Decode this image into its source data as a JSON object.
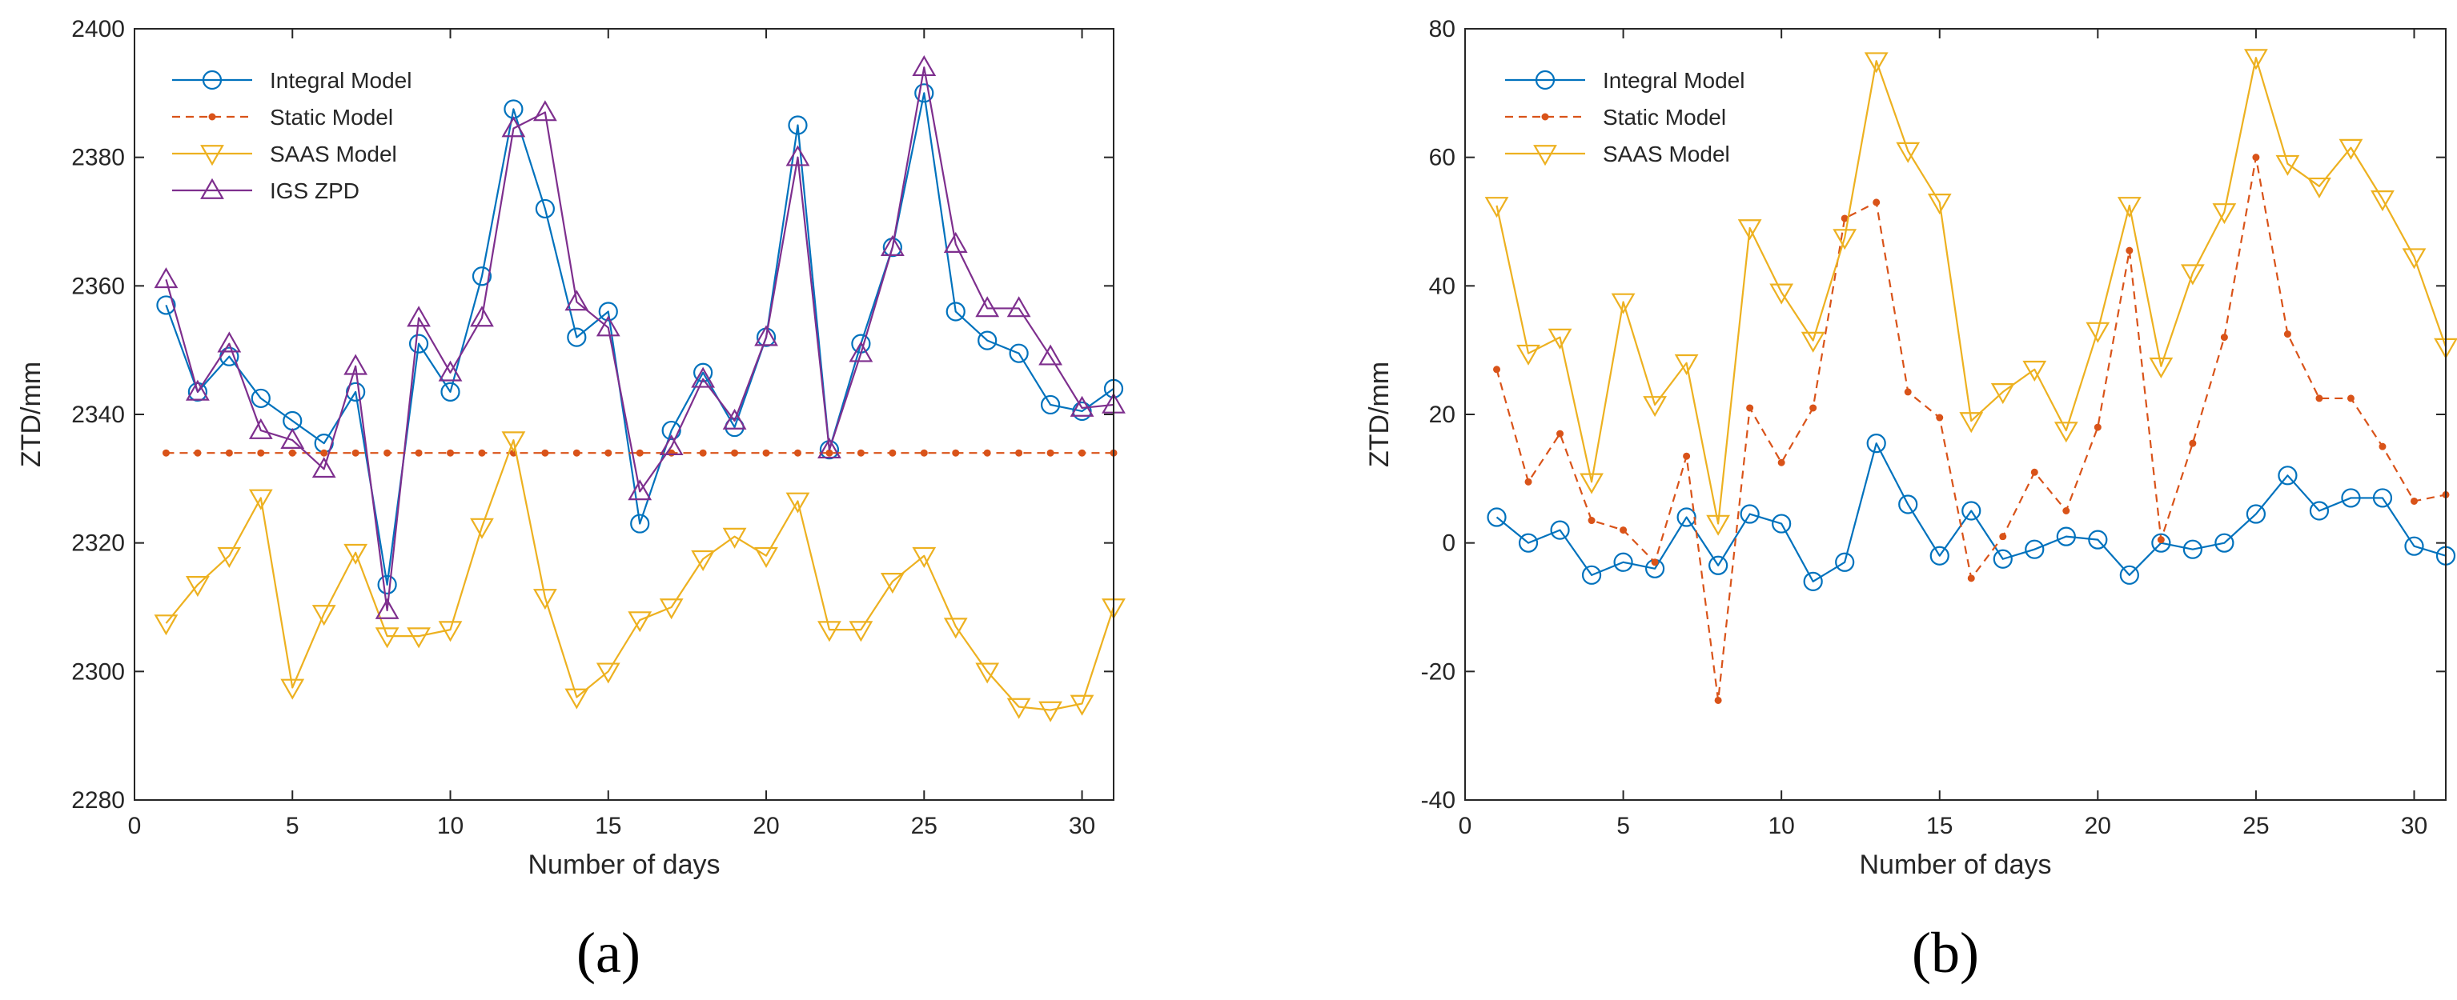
{
  "colors": {
    "integral": "#0072BD",
    "static": "#D95319",
    "saas": "#EDB120",
    "igs": "#7E2F8E"
  },
  "chart_data": [
    {
      "type": "line",
      "caption": "(a)",
      "xlabel": "Number of days",
      "ylabel": "ZTD/mm",
      "xlim": [
        0,
        31
      ],
      "ylim": [
        2280,
        2400
      ],
      "xticks": [
        0,
        5,
        10,
        15,
        20,
        25,
        30
      ],
      "yticks": [
        2280,
        2300,
        2320,
        2340,
        2360,
        2380,
        2400
      ],
      "legend_position": "top-left",
      "x": [
        1,
        2,
        3,
        4,
        5,
        6,
        7,
        8,
        9,
        10,
        11,
        12,
        13,
        14,
        15,
        16,
        17,
        18,
        19,
        20,
        21,
        22,
        23,
        24,
        25,
        26,
        27,
        28,
        29,
        30,
        31
      ],
      "series": [
        {
          "name": "Integral Model",
          "color_key": "integral",
          "marker": "circle",
          "dash": "solid",
          "values": [
            2357,
            2343.5,
            2349,
            2342.5,
            2339,
            2335.5,
            2343.5,
            2313.5,
            2351,
            2343.5,
            2361.5,
            2387.5,
            2372,
            2352,
            2356,
            2323,
            2337.5,
            2346.5,
            2338,
            2352,
            2385,
            2334.5,
            2351,
            2366,
            2390,
            2356,
            2351.5,
            2349.5,
            2341.5,
            2340.5,
            2344
          ]
        },
        {
          "name": "Static Model",
          "color_key": "static",
          "marker": "dot",
          "dash": "dashed",
          "values": [
            2334,
            2334,
            2334,
            2334,
            2334,
            2334,
            2334,
            2334,
            2334,
            2334,
            2334,
            2334,
            2334,
            2334,
            2334,
            2334,
            2334,
            2334,
            2334,
            2334,
            2334,
            2334,
            2334,
            2334,
            2334,
            2334,
            2334,
            2334,
            2334,
            2334,
            2334
          ]
        },
        {
          "name": "SAAS Model",
          "color_key": "saas",
          "marker": "triangle-down",
          "dash": "solid",
          "values": [
            2307.5,
            2313.5,
            2318,
            2327,
            2297.5,
            2309,
            2318.5,
            2305.5,
            2305.5,
            2306.5,
            2322.5,
            2336,
            2311.5,
            2296,
            2300,
            2308,
            2310,
            2317.5,
            2321,
            2318,
            2326.5,
            2306.5,
            2306.5,
            2314,
            2318,
            2307,
            2300,
            2294.5,
            2294,
            2295,
            2310
          ]
        },
        {
          "name": "IGS ZPD",
          "color_key": "igs",
          "marker": "triangle-up",
          "dash": "solid",
          "values": [
            2361,
            2343.5,
            2351,
            2337.5,
            2336,
            2331.5,
            2347.5,
            2309.5,
            2355,
            2346.5,
            2355,
            2384.5,
            2387,
            2357.5,
            2353.5,
            2328,
            2335,
            2345.5,
            2339,
            2352,
            2380,
            2334.5,
            2349.5,
            2366,
            2394,
            2366.5,
            2356.5,
            2356.5,
            2349,
            2341,
            2341.5
          ]
        }
      ]
    },
    {
      "type": "line",
      "caption": "(b)",
      "xlabel": "Number of days",
      "ylabel": "ZTD/mm",
      "xlim": [
        0,
        31
      ],
      "ylim": [
        -40,
        80
      ],
      "xticks": [
        0,
        5,
        10,
        15,
        20,
        25,
        30
      ],
      "yticks": [
        -40,
        -20,
        0,
        20,
        40,
        60,
        80
      ],
      "legend_position": "top-left",
      "x": [
        1,
        2,
        3,
        4,
        5,
        6,
        7,
        8,
        9,
        10,
        11,
        12,
        13,
        14,
        15,
        16,
        17,
        18,
        19,
        20,
        21,
        22,
        23,
        24,
        25,
        26,
        27,
        28,
        29,
        30,
        31
      ],
      "series": [
        {
          "name": "Integral Model",
          "color_key": "integral",
          "marker": "circle",
          "dash": "solid",
          "values": [
            4,
            0,
            2,
            -5,
            -3,
            -4,
            4,
            -3.5,
            4.5,
            3,
            -6,
            -3,
            15.5,
            6,
            -2,
            5,
            -2.5,
            -1,
            1,
            0.5,
            -5,
            0,
            -1,
            0,
            4.5,
            10.5,
            5,
            7,
            7,
            -0.5,
            -2
          ]
        },
        {
          "name": "Static Model",
          "color_key": "static",
          "marker": "dot",
          "dash": "dashed",
          "values": [
            27,
            9.5,
            17,
            3.5,
            2,
            -3,
            13.5,
            -24.5,
            21,
            12.5,
            21,
            50.5,
            53,
            23.5,
            19.5,
            -5.5,
            1,
            11,
            5,
            18,
            45.5,
            0.5,
            15.5,
            32,
            60,
            32.5,
            22.5,
            22.5,
            15,
            6.5,
            7.5
          ]
        },
        {
          "name": "SAAS Model",
          "color_key": "saas",
          "marker": "triangle-down",
          "dash": "solid",
          "values": [
            52.5,
            29.5,
            32,
            9.5,
            37.5,
            21.5,
            28,
            3,
            49,
            39,
            31.5,
            47.5,
            75,
            61,
            53,
            19,
            23.5,
            27,
            17.5,
            33,
            52.5,
            27.5,
            42,
            51.5,
            75.5,
            59,
            55.5,
            61.5,
            53.5,
            44.5,
            30.5
          ]
        }
      ]
    }
  ]
}
